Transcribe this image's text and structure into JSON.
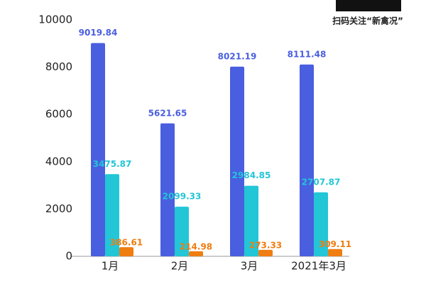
{
  "chart_data": {
    "type": "bar",
    "watermark": "扫码关注“新禽况”",
    "categories": [
      "1月",
      "2月",
      "3月",
      "2021年3月"
    ],
    "series": [
      {
        "color": "#4a5ee0",
        "values": [
          9019.84,
          5621.65,
          8021.19,
          8111.48
        ]
      },
      {
        "color": "#22c6d6",
        "values": [
          3475.87,
          2099.33,
          2984.85,
          2707.87
        ]
      },
      {
        "color": "#f07d10",
        "values": [
          386.61,
          214.98,
          273.33,
          309.11
        ]
      }
    ],
    "ylim": [
      0,
      10000
    ],
    "yticks": [
      0,
      2000,
      4000,
      6000,
      8000,
      10000
    ],
    "grid": false
  }
}
